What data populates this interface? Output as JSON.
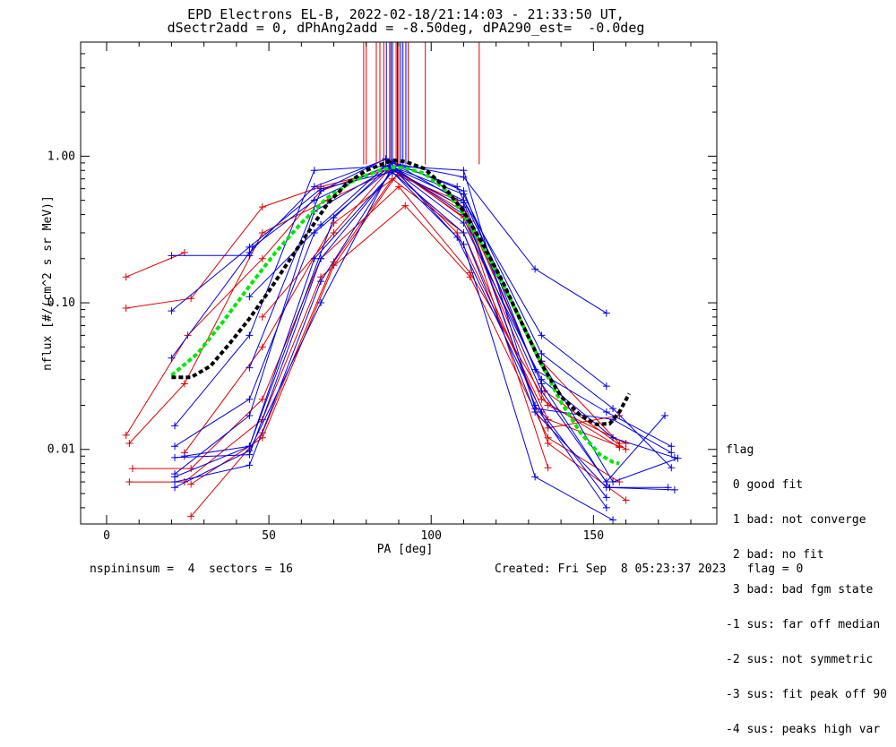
{
  "title": {
    "line1": "EPD Electrons EL-B, 2022-02-18/21:14:03 - 21:33:50 UT,",
    "line2": "dSectr2add = 0, dPhAng2add = -8.50deg, dPA290_est=  -0.0deg"
  },
  "footer": {
    "left": "nspininsum =  4  sectors = 16",
    "right": "Created: Fri Sep  8 05:23:37 2023   flag = 0"
  },
  "legend": {
    "title": "flag",
    "items": [
      " 0 good fit",
      " 1 bad: not converge",
      " 2 bad: no fit",
      " 3 bad: bad fgm state",
      "-1 sus: far off median",
      "-2 sus: not symmetric",
      "-3 sus: fit peak off 90",
      "-4 sus: peaks high var"
    ]
  },
  "colors": {
    "red": "#e00000",
    "blue": "#0000e6",
    "green": "#00e600",
    "black": "#000000"
  },
  "chart_data": {
    "type": "line",
    "xlabel": "PA [deg]",
    "ylabel": "nflux [#/(cm^2 s sr MeV)]",
    "xlim": [
      -8,
      188
    ],
    "ylim": [
      0.0031,
      6.0
    ],
    "yscale": "log",
    "xticks": [
      0,
      50,
      100,
      150
    ],
    "xtick_labels": [
      "0",
      "50",
      "100",
      "150"
    ],
    "yticks": [
      0.01,
      0.1,
      1.0
    ],
    "ytick_labels": [
      "0.01",
      "0.10",
      "1.00"
    ],
    "grid": false,
    "series": [
      {
        "color": "red",
        "points": [
          [
            6,
            0.15
          ],
          [
            24,
            0.22
          ]
        ]
      },
      {
        "color": "red",
        "points": [
          [
            6,
            0.092
          ],
          [
            26,
            0.107
          ],
          [
            48,
            0.45
          ],
          [
            66,
            0.62
          ],
          [
            86,
            0.8
          ],
          [
            108,
            0.5
          ],
          [
            134,
            0.04
          ],
          [
            158,
            0.011
          ]
        ]
      },
      {
        "color": "red",
        "points": [
          [
            6,
            0.0125
          ],
          [
            25,
            0.06
          ],
          [
            48,
            0.2
          ],
          [
            66,
            0.58
          ],
          [
            87,
            0.85
          ],
          [
            110,
            0.42
          ],
          [
            136,
            0.0075
          ]
        ]
      },
      {
        "color": "red",
        "points": [
          [
            7,
            0.011
          ],
          [
            24,
            0.028
          ],
          [
            48,
            0.3
          ],
          [
            68,
            0.5
          ],
          [
            88,
            0.8
          ],
          [
            110,
            0.45
          ],
          [
            135,
            0.025
          ],
          [
            160,
            0.01
          ]
        ]
      },
      {
        "color": "red",
        "points": [
          [
            8,
            0.0074
          ],
          [
            26,
            0.0074
          ],
          [
            48,
            0.022
          ],
          [
            66,
            0.2
          ],
          [
            90,
            0.62
          ],
          [
            112,
            0.16
          ],
          [
            136,
            0.02
          ],
          [
            160,
            0.011
          ]
        ]
      },
      {
        "color": "red",
        "points": [
          [
            7,
            0.006
          ],
          [
            24,
            0.006
          ],
          [
            48,
            0.016
          ],
          [
            66,
            0.15
          ],
          [
            92,
            0.46
          ],
          [
            112,
            0.15
          ],
          [
            136,
            0.012
          ],
          [
            158,
            0.006
          ]
        ]
      },
      {
        "color": "red",
        "points": [
          [
            26,
            0.0058
          ],
          [
            48,
            0.012
          ],
          [
            70,
            0.18
          ],
          [
            90,
            0.78
          ],
          [
            112,
            0.36
          ],
          [
            136,
            0.011
          ],
          [
            160,
            0.0045
          ]
        ]
      },
      {
        "color": "red",
        "points": [
          [
            26,
            0.0035
          ],
          [
            48,
            0.013
          ],
          [
            70,
            0.19
          ],
          [
            88,
            0.7
          ],
          [
            110,
            0.3
          ],
          [
            136,
            0.014
          ],
          [
            158,
            0.017
          ]
        ]
      },
      {
        "color": "red",
        "points": [
          [
            24,
            0.0095
          ],
          [
            48,
            0.05
          ],
          [
            70,
            0.35
          ],
          [
            90,
            0.75
          ],
          [
            108,
            0.3
          ],
          [
            136,
            0.016
          ],
          [
            158,
            0.0105
          ]
        ]
      },
      {
        "color": "red",
        "points": [
          [
            48,
            0.08
          ],
          [
            70,
            0.3
          ],
          [
            88,
            0.86
          ],
          [
            110,
            0.38
          ],
          [
            134,
            0.022
          ],
          [
            158,
            0.0103
          ]
        ]
      },
      {
        "color": "blue",
        "points": [
          [
            20,
            0.21
          ],
          [
            44,
            0.21
          ],
          [
            45,
            0.24
          ],
          [
            64,
            0.5
          ],
          [
            88,
            0.9
          ],
          [
            110,
            0.72
          ],
          [
            132,
            0.17
          ],
          [
            154,
            0.085
          ]
        ]
      },
      {
        "color": "blue",
        "points": [
          [
            20,
            0.088
          ],
          [
            44,
            0.24
          ],
          [
            66,
            0.6
          ],
          [
            90,
            0.8
          ],
          [
            110,
            0.5
          ],
          [
            134,
            0.06
          ],
          [
            154,
            0.027
          ]
        ]
      },
      {
        "color": "blue",
        "points": [
          [
            20,
            0.042
          ],
          [
            44,
            0.22
          ],
          [
            64,
            0.62
          ],
          [
            86,
            0.95
          ],
          [
            110,
            0.58
          ],
          [
            132,
            0.035
          ],
          [
            154,
            0.018
          ],
          [
            174,
            0.0105
          ]
        ]
      },
      {
        "color": "blue",
        "points": [
          [
            21,
            0.0145
          ],
          [
            44,
            0.06
          ],
          [
            64,
            0.8
          ],
          [
            88,
            0.86
          ],
          [
            110,
            0.8
          ],
          [
            132,
            0.019
          ],
          [
            156,
            0.016
          ],
          [
            174,
            0.0095
          ]
        ]
      },
      {
        "color": "blue",
        "points": [
          [
            21,
            0.0105
          ],
          [
            44,
            0.022
          ],
          [
            64,
            0.3
          ],
          [
            88,
            0.85
          ],
          [
            110,
            0.25
          ],
          [
            132,
            0.0065
          ],
          [
            156,
            0.0033
          ]
        ]
      },
      {
        "color": "blue",
        "points": [
          [
            21,
            0.0088
          ],
          [
            44,
            0.0092
          ],
          [
            66,
            0.2
          ],
          [
            88,
            0.78
          ],
          [
            108,
            0.28
          ],
          [
            134,
            0.018
          ],
          [
            154,
            0.0047
          ]
        ]
      },
      {
        "color": "blue",
        "points": [
          [
            21,
            0.0065
          ],
          [
            44,
            0.0105
          ],
          [
            64,
            0.2
          ],
          [
            88,
            0.78
          ],
          [
            110,
            0.3
          ],
          [
            132,
            0.018
          ],
          [
            154,
            0.0055
          ],
          [
            175,
            0.0053
          ]
        ]
      },
      {
        "color": "blue",
        "points": [
          [
            21,
            0.006
          ],
          [
            44,
            0.0078
          ],
          [
            66,
            0.14
          ],
          [
            88,
            0.82
          ],
          [
            110,
            0.35
          ],
          [
            134,
            0.03
          ],
          [
            156,
            0.012
          ],
          [
            175,
            0.0088
          ]
        ]
      },
      {
        "color": "blue",
        "points": [
          [
            21,
            0.0055
          ],
          [
            44,
            0.0098
          ],
          [
            66,
            0.1
          ],
          [
            88,
            0.85
          ],
          [
            110,
            0.4
          ],
          [
            134,
            0.025
          ],
          [
            154,
            0.006
          ],
          [
            172,
            0.017
          ]
        ]
      },
      {
        "color": "blue",
        "points": [
          [
            21,
            0.0068
          ],
          [
            44,
            0.017
          ],
          [
            64,
            0.42
          ],
          [
            88,
            0.85
          ],
          [
            110,
            0.55
          ],
          [
            134,
            0.045
          ],
          [
            156,
            0.019
          ],
          [
            174,
            0.0075
          ]
        ]
      },
      {
        "color": "blue",
        "points": [
          [
            44,
            0.11
          ],
          [
            66,
            0.34
          ],
          [
            86,
            0.86
          ],
          [
            110,
            0.45
          ],
          [
            132,
            0.02
          ],
          [
            154,
            0.004
          ]
        ]
      },
      {
        "color": "blue",
        "points": [
          [
            24,
            0.009
          ],
          [
            44,
            0.0105
          ],
          [
            70,
            0.38
          ],
          [
            88,
            0.9
          ],
          [
            108,
            0.62
          ],
          [
            134,
            0.04
          ],
          [
            156,
            0.006
          ],
          [
            176,
            0.0087
          ]
        ]
      },
      {
        "color": "blue",
        "points": [
          [
            44,
            0.036
          ],
          [
            66,
            0.58
          ],
          [
            86,
            0.96
          ],
          [
            110,
            0.48
          ],
          [
            134,
            0.028
          ],
          [
            155,
            0.0055
          ],
          [
            173,
            0.0055
          ]
        ]
      }
    ],
    "fits": [
      {
        "color": "green",
        "points": [
          [
            20,
            0.032
          ],
          [
            28,
            0.045
          ],
          [
            36,
            0.075
          ],
          [
            44,
            0.13
          ],
          [
            52,
            0.22
          ],
          [
            60,
            0.35
          ],
          [
            68,
            0.52
          ],
          [
            76,
            0.68
          ],
          [
            84,
            0.8
          ],
          [
            88,
            0.84
          ],
          [
            92,
            0.83
          ],
          [
            98,
            0.76
          ],
          [
            104,
            0.6
          ],
          [
            110,
            0.4
          ],
          [
            116,
            0.24
          ],
          [
            122,
            0.135
          ],
          [
            128,
            0.072
          ],
          [
            134,
            0.038
          ],
          [
            140,
            0.021
          ],
          [
            146,
            0.013
          ],
          [
            152,
            0.0092
          ],
          [
            156,
            0.0082
          ],
          [
            158,
            0.008
          ]
        ]
      },
      {
        "color": "black",
        "points": [
          [
            20,
            0.031
          ],
          [
            26,
            0.031
          ],
          [
            32,
            0.037
          ],
          [
            38,
            0.053
          ],
          [
            44,
            0.078
          ],
          [
            50,
            0.12
          ],
          [
            56,
            0.19
          ],
          [
            62,
            0.3
          ],
          [
            68,
            0.47
          ],
          [
            74,
            0.65
          ],
          [
            80,
            0.8
          ],
          [
            86,
            0.9
          ],
          [
            88,
            0.94
          ],
          [
            92,
            0.92
          ],
          [
            98,
            0.82
          ],
          [
            104,
            0.62
          ],
          [
            110,
            0.42
          ],
          [
            116,
            0.25
          ],
          [
            122,
            0.14
          ],
          [
            128,
            0.072
          ],
          [
            134,
            0.038
          ],
          [
            140,
            0.023
          ],
          [
            146,
            0.017
          ],
          [
            151,
            0.0148
          ],
          [
            155,
            0.015
          ],
          [
            158,
            0.018
          ],
          [
            161,
            0.024
          ]
        ]
      }
    ],
    "vlines": [
      {
        "color": "red",
        "x": [
          79.2,
          80.0,
          83.1,
          84.2,
          85.4,
          87.2,
          89.2,
          90.0,
          92.9,
          98.2,
          114.8
        ]
      },
      {
        "color": "blue",
        "x": [
          86.2,
          87.6,
          88.1,
          89.6,
          90.6,
          91.3,
          92.2
        ]
      }
    ],
    "vline_top": 6.0,
    "vline_bottom": 0.88
  }
}
